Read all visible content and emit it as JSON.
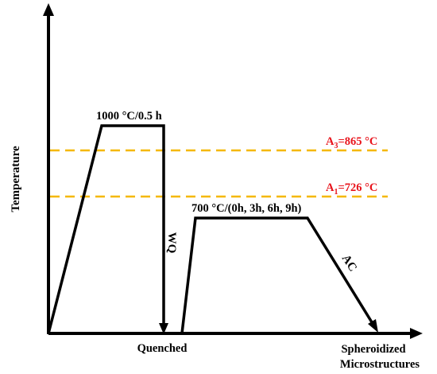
{
  "axes": {
    "y_label": "Temperature"
  },
  "stages": {
    "austenitize": "1000 °C/0.5 h",
    "quench_method": "WQ",
    "quench_result": "Quenched",
    "spheroidize": "700 °C/(0h, 3h, 6h, 9h)",
    "cool_method": "AC",
    "final_line1": "Spheroidized",
    "final_line2": "Microstructures"
  },
  "critical_temps": {
    "a3": {
      "symbol": "A",
      "subscript": "3",
      "value": "=865 °C"
    },
    "a1": {
      "symbol": "A",
      "subscript": "1",
      "value": "=726 °C"
    }
  },
  "colors": {
    "process_line": "#000000",
    "critical_line": "#f5b800",
    "critical_text": "#e8141c"
  }
}
